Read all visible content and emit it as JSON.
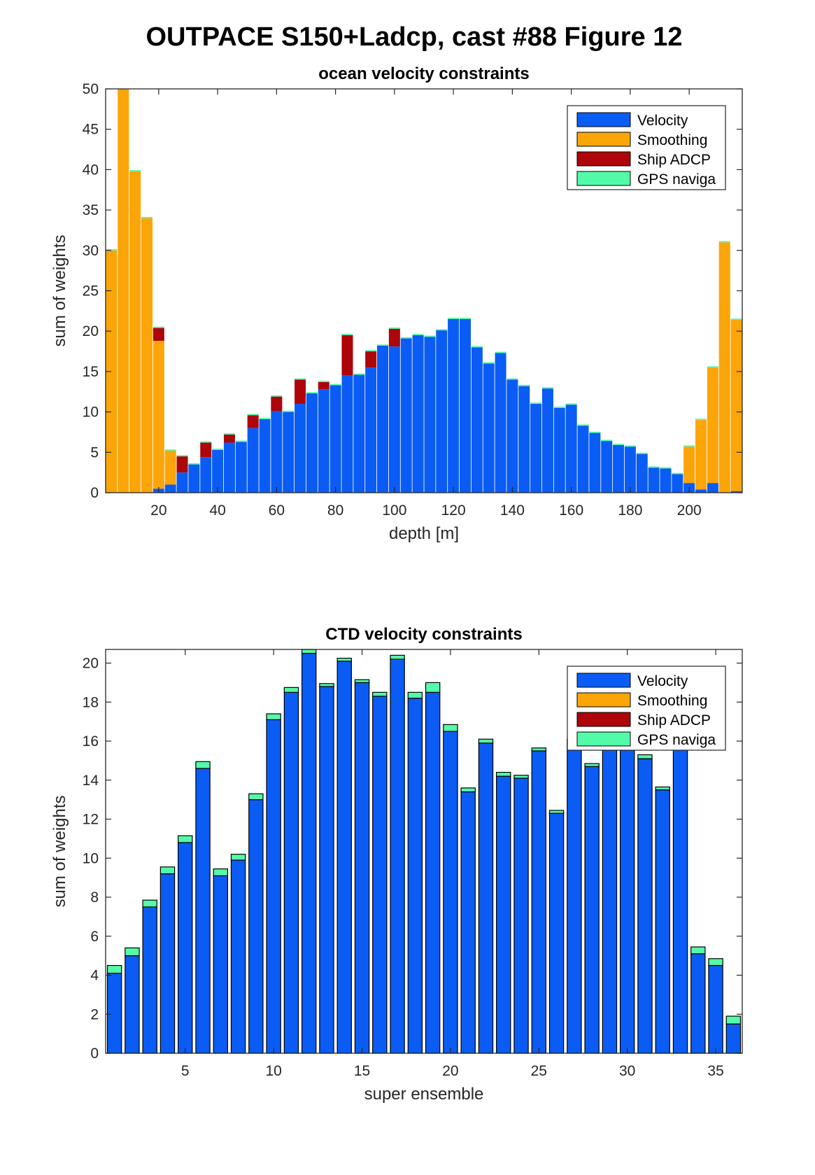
{
  "figure_title": "OUTPACE S150+Ladcp, cast #88  Figure 12",
  "colors": {
    "Velocity": "#0a5cf5",
    "Smoothing": "#fba508",
    "Ship ADCP": "#ad0509",
    "GPS naviga": "#53fba8"
  },
  "chart_data": [
    {
      "type": "bar",
      "stacked": true,
      "title": "ocean velocity constraints",
      "xlabel": "depth [m]",
      "ylabel": "sum of weights",
      "xlim": [
        2,
        218
      ],
      "ylim": [
        0,
        50
      ],
      "xticks": [
        20,
        40,
        60,
        80,
        100,
        120,
        140,
        160,
        180,
        200
      ],
      "yticks": [
        0,
        5,
        10,
        15,
        20,
        25,
        30,
        35,
        40,
        45,
        50
      ],
      "bar_width": 3.8,
      "legend_position": "top-right",
      "grid": false,
      "x": [
        4,
        8,
        12,
        16,
        20,
        24,
        28,
        32,
        36,
        40,
        44,
        48,
        52,
        56,
        60,
        64,
        68,
        72,
        76,
        80,
        84,
        88,
        92,
        96,
        100,
        104,
        108,
        112,
        116,
        120,
        124,
        128,
        132,
        136,
        140,
        144,
        148,
        152,
        156,
        160,
        164,
        168,
        172,
        176,
        180,
        184,
        188,
        192,
        196,
        200,
        204,
        208,
        212,
        216
      ],
      "series": [
        {
          "name": "Velocity",
          "values": [
            0,
            0,
            0,
            0,
            0.5,
            1.0,
            2.5,
            3.5,
            4.4,
            5.3,
            6.2,
            6.3,
            8.0,
            9.1,
            10.1,
            10.0,
            11.0,
            12.3,
            12.8,
            13.3,
            14.5,
            14.6,
            15.5,
            18.2,
            18.1,
            19.1,
            19.5,
            19.3,
            20.1,
            21.5,
            21.5,
            18.0,
            16.0,
            17.3,
            14.0,
            13.2,
            11.0,
            12.9,
            10.5,
            10.9,
            8.3,
            7.4,
            6.4,
            5.9,
            5.7,
            4.8,
            3.1,
            3.0,
            2.3,
            1.2,
            0.4,
            1.2,
            0,
            0.2
          ]
        },
        {
          "name": "Smoothing",
          "values": [
            30.0,
            50.0,
            39.8,
            34.0,
            18.3,
            4.2,
            0,
            0,
            0,
            0,
            0,
            0,
            0,
            0,
            0,
            0,
            0,
            0,
            0,
            0,
            0,
            0,
            0,
            0,
            0,
            0,
            0,
            0,
            0,
            0,
            0,
            0,
            0,
            0,
            0,
            0,
            0,
            0,
            0,
            0,
            0,
            0,
            0,
            0,
            0,
            0,
            0,
            0,
            0,
            4.5,
            8.6,
            14.3,
            31.0,
            21.2
          ]
        },
        {
          "name": "Ship ADCP",
          "values": [
            0,
            0,
            0,
            0,
            1.6,
            0,
            2.0,
            0,
            1.8,
            0,
            1.0,
            0,
            1.6,
            0,
            1.8,
            0,
            3.0,
            0,
            0.9,
            0,
            5.0,
            0,
            2.0,
            0,
            2.2,
            0,
            0,
            0,
            0,
            0,
            0,
            0,
            0,
            0,
            0,
            0,
            0,
            0,
            0,
            0,
            0,
            0,
            0,
            0,
            0,
            0,
            0,
            0,
            0,
            0,
            0,
            0,
            0,
            0
          ]
        },
        {
          "name": "GPS naviga",
          "values": [
            0.15,
            0.15,
            0.15,
            0.15,
            0.15,
            0.15,
            0.15,
            0.15,
            0.15,
            0.15,
            0.15,
            0.15,
            0.15,
            0.15,
            0.15,
            0.15,
            0.15,
            0.15,
            0.15,
            0.15,
            0.15,
            0.15,
            0.15,
            0.15,
            0.15,
            0.15,
            0.15,
            0.15,
            0.15,
            0.15,
            0.15,
            0.15,
            0.15,
            0.15,
            0.15,
            0.15,
            0.15,
            0.15,
            0.15,
            0.15,
            0.15,
            0.15,
            0.15,
            0.15,
            0.15,
            0.15,
            0.15,
            0.15,
            0.15,
            0.15,
            0.15,
            0.15,
            0.15,
            0.15
          ]
        }
      ]
    },
    {
      "type": "bar",
      "stacked": true,
      "title": "CTD velocity constraints",
      "xlabel": "super ensemble",
      "ylabel": "sum of weights",
      "xlim": [
        0.5,
        36.5
      ],
      "ylim": [
        0,
        20.7
      ],
      "xticks": [
        5,
        10,
        15,
        20,
        25,
        30,
        35
      ],
      "yticks": [
        0,
        2,
        4,
        6,
        8,
        10,
        12,
        14,
        16,
        18,
        20
      ],
      "bar_width": 0.8,
      "outlined": true,
      "legend_position": "top-right",
      "grid": false,
      "x": [
        1,
        2,
        3,
        4,
        5,
        6,
        7,
        8,
        9,
        10,
        11,
        12,
        13,
        14,
        15,
        16,
        17,
        18,
        19,
        20,
        21,
        22,
        23,
        24,
        25,
        26,
        27,
        28,
        29,
        30,
        31,
        32,
        33,
        34,
        35,
        36
      ],
      "series": [
        {
          "name": "Velocity",
          "values": [
            4.1,
            5.0,
            7.5,
            9.2,
            10.8,
            14.6,
            9.1,
            9.9,
            13.0,
            17.1,
            18.5,
            20.5,
            18.8,
            20.1,
            19.0,
            18.3,
            20.2,
            18.2,
            18.5,
            16.5,
            13.4,
            15.9,
            14.2,
            14.1,
            15.5,
            12.3,
            15.9,
            14.7,
            16.0,
            16.0,
            15.1,
            13.5,
            16.0,
            5.1,
            4.5,
            1.5
          ]
        },
        {
          "name": "Smoothing",
          "values": [
            0,
            0,
            0,
            0,
            0,
            0,
            0,
            0,
            0,
            0,
            0,
            0,
            0,
            0,
            0,
            0,
            0,
            0,
            0,
            0,
            0,
            0,
            0,
            0,
            0,
            0,
            0,
            0,
            0,
            0,
            0,
            0,
            0,
            0,
            0,
            0
          ]
        },
        {
          "name": "Ship ADCP",
          "values": [
            0,
            0,
            0,
            0,
            0,
            0,
            0,
            0,
            0,
            0,
            0,
            0,
            0,
            0,
            0,
            0,
            0,
            0,
            0,
            0,
            0,
            0,
            0,
            0,
            0,
            0,
            0,
            0,
            0,
            0,
            0,
            0,
            0,
            0,
            0,
            0
          ]
        },
        {
          "name": "GPS naviga",
          "values": [
            0.4,
            0.4,
            0.35,
            0.35,
            0.35,
            0.35,
            0.35,
            0.3,
            0.3,
            0.3,
            0.25,
            0.25,
            0.15,
            0.15,
            0.15,
            0.2,
            0.2,
            0.3,
            0.5,
            0.35,
            0.2,
            0.2,
            0.2,
            0.15,
            0.15,
            0.15,
            0.2,
            0.15,
            0.2,
            0.2,
            0.2,
            0.15,
            0.2,
            0.35,
            0.35,
            0.4
          ]
        }
      ]
    }
  ]
}
